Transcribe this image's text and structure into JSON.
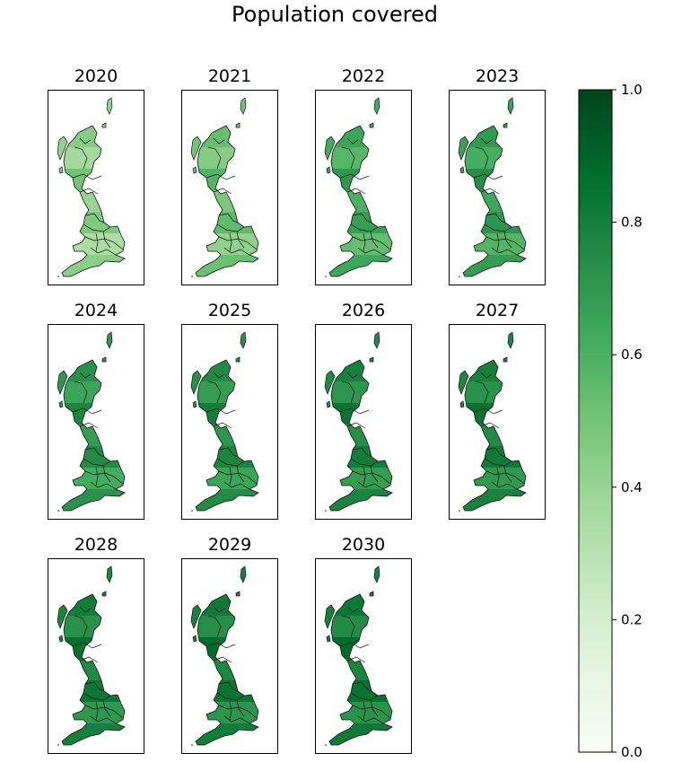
{
  "chart_data": {
    "type": "heatmap",
    "title": "Population covered",
    "panels": [
      {
        "year": "2020",
        "level": 0.42
      },
      {
        "year": "2021",
        "level": 0.5
      },
      {
        "year": "2022",
        "level": 0.62
      },
      {
        "year": "2023",
        "level": 0.66
      },
      {
        "year": "2024",
        "level": 0.7
      },
      {
        "year": "2025",
        "level": 0.73
      },
      {
        "year": "2026",
        "level": 0.76
      },
      {
        "year": "2027",
        "level": 0.77
      },
      {
        "year": "2028",
        "level": 0.78
      },
      {
        "year": "2029",
        "level": 0.79
      },
      {
        "year": "2030",
        "level": 0.8
      }
    ],
    "colorbar": {
      "range": [
        0.0,
        1.0
      ],
      "ticks": [
        "0.0",
        "0.2",
        "0.4",
        "0.6",
        "0.8",
        "1.0"
      ],
      "colormap": "Greens",
      "colors": [
        "#f7fcf5",
        "#e5f5e0",
        "#c7e9c0",
        "#a1d99b",
        "#74c476",
        "#41ab5d",
        "#238b45",
        "#006d2c",
        "#00441b"
      ]
    }
  }
}
